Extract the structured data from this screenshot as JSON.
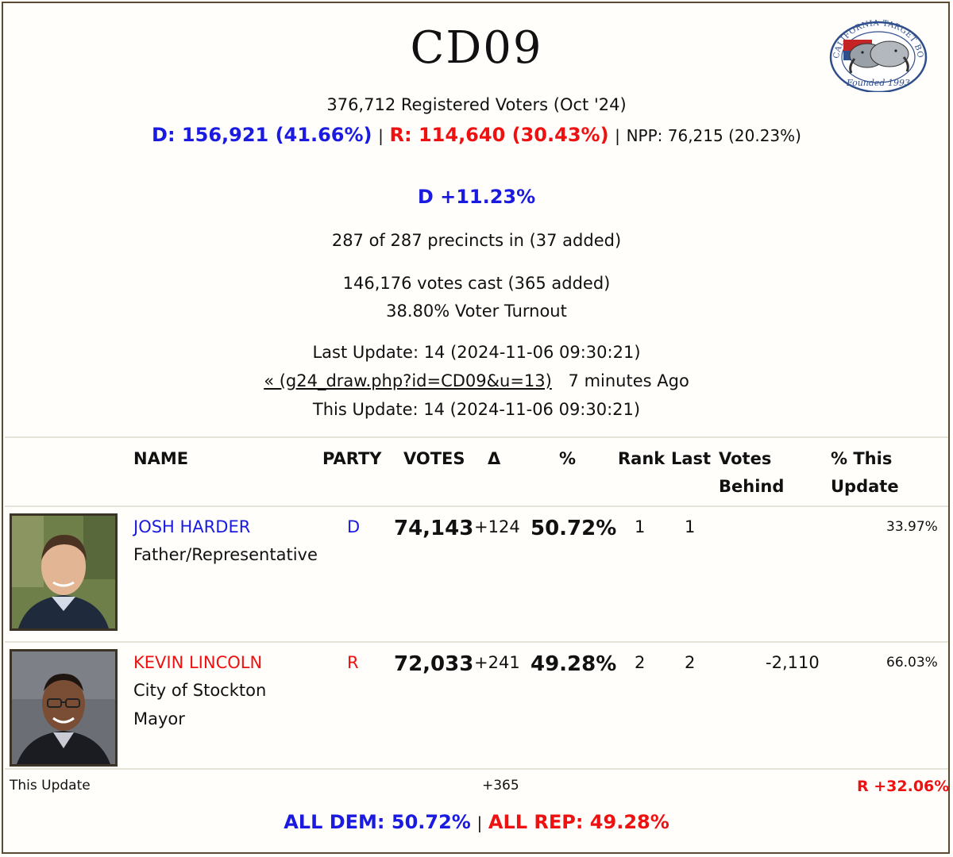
{
  "header": {
    "title": "CD09",
    "registered": "376,712 Registered Voters (Oct '24)",
    "dem": "D: 156,921 (41.66%)",
    "rep": "R: 114,640 (30.43%)",
    "npp": "NPP: 76,215 (20.23%)",
    "separator": "|",
    "margin": "D +11.23%",
    "precincts": "287 of 287 precincts in (37 added)",
    "votes_cast": "146,176 votes cast (365 added)",
    "turnout": "38.80% Voter Turnout",
    "last_update": "Last Update: 14 (2024-11-06 09:30:21)",
    "prev_link": "« (g24_draw.php?id=CD09&u=13)",
    "ago": "7 minutes Ago",
    "this_update": "This Update: 14 (2024-11-06 09:30:21)"
  },
  "logo": {
    "ring_text": "CALIFORNIA TARGET BOOK",
    "founded": "Founded 1993"
  },
  "table": {
    "headers": {
      "name": "NAME",
      "party": "PARTY",
      "votes": "VOTES",
      "delta": "Δ",
      "pct": "%",
      "rank": "Rank",
      "last": "Last",
      "votes_behind_1": "Votes",
      "votes_behind_2": "Behind",
      "pct_this_1": "% This",
      "pct_this_2": "Update"
    },
    "rows": [
      {
        "name": "JOSH HARDER",
        "desc1": "Father/Representative",
        "desc2": "",
        "party": "D",
        "votes": "74,143",
        "delta": "+124",
        "pct": "50.72%",
        "rank": "1",
        "last": "1",
        "behind": "",
        "pct_this": "33.97%",
        "color": "#1a1ae0"
      },
      {
        "name": "KEVIN LINCOLN",
        "desc1": "City of Stockton",
        "desc2": "Mayor",
        "party": "R",
        "votes": "72,033",
        "delta": "+241",
        "pct": "49.28%",
        "rank": "2",
        "last": "2",
        "behind": "-2,110",
        "pct_this": "66.03%",
        "color": "#ee1111"
      }
    ]
  },
  "footer": {
    "this_update_label": "This Update",
    "delta_total": "+365",
    "shift": "R +32.06%",
    "all_dem": "ALL DEM: 50.72%",
    "all_rep": "ALL REP: 49.28%",
    "separator": "|"
  }
}
